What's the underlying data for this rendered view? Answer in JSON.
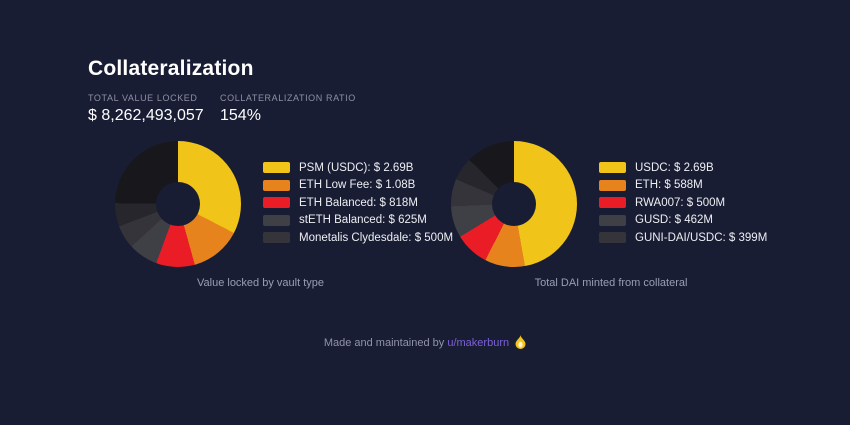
{
  "page": {
    "title": "Collateralization",
    "colors": {
      "background": "#191d33",
      "accent_yellow": "#f0c419",
      "accent_orange": "#e6831d",
      "accent_red": "#ea1c25",
      "link_purple": "#7b61d6"
    }
  },
  "stats": [
    {
      "label": "TOTAL VALUE LOCKED",
      "value": "$ 8,262,493,057"
    },
    {
      "label": "COLLATERALIZATION RATIO",
      "value": "154%"
    }
  ],
  "chart_data": [
    {
      "type": "donut",
      "caption": "Value locked by vault type",
      "total_value_locked": "$ 8,262,493,057",
      "legend_position": "right",
      "start_angle_deg": 0,
      "segments": [
        {
          "label": "PSM (USDC)",
          "display": "$ 2.69B",
          "value_usd_billion": 2.69,
          "pct": 32.6,
          "color": "#f0c419",
          "in_legend": true
        },
        {
          "label": "ETH Low Fee",
          "display": "$ 1.08B",
          "value_usd_billion": 1.08,
          "pct": 13.1,
          "color": "#e6831d",
          "in_legend": true
        },
        {
          "label": "ETH Balanced",
          "display": "$ 818M",
          "value_usd_billion": 0.818,
          "pct": 9.9,
          "color": "#ea1c25",
          "in_legend": true
        },
        {
          "label": "stETH Balanced",
          "display": "$ 625M",
          "value_usd_billion": 0.625,
          "pct": 7.6,
          "color": "#3f3f46",
          "in_legend": true
        },
        {
          "label": "Monetalis Clydesdale",
          "display": "$ 500M",
          "value_usd_billion": 0.5,
          "pct": 6.0,
          "color": "#34343a",
          "in_legend": true
        },
        {
          "label": "other vaults",
          "display": "",
          "pct": 6.0,
          "color": "#26262c",
          "in_legend": false
        },
        {
          "label": "other vaults",
          "display": "",
          "pct": 24.8,
          "color": "#17171c",
          "in_legend": false
        }
      ]
    },
    {
      "type": "donut",
      "caption": "Total DAI minted from collateral",
      "legend_position": "right",
      "start_angle_deg": 0,
      "segments": [
        {
          "label": "USDC",
          "display": "$ 2.69B",
          "value_usd_billion": 2.69,
          "pct": 47.2,
          "color": "#f0c419",
          "in_legend": true
        },
        {
          "label": "ETH",
          "display": "$ 588M",
          "value_usd_billion": 0.588,
          "pct": 10.3,
          "color": "#e6831d",
          "in_legend": true
        },
        {
          "label": "RWA007",
          "display": "$ 500M",
          "value_usd_billion": 0.5,
          "pct": 8.8,
          "color": "#ea1c25",
          "in_legend": true
        },
        {
          "label": "GUSD",
          "display": "$ 462M",
          "value_usd_billion": 0.462,
          "pct": 8.1,
          "color": "#3f3f46",
          "in_legend": true
        },
        {
          "label": "GUNI-DAI/USDC",
          "display": "$ 399M",
          "value_usd_billion": 0.399,
          "pct": 7.0,
          "color": "#34343a",
          "in_legend": true
        },
        {
          "label": "other collateral",
          "display": "",
          "pct": 6.0,
          "color": "#26262c",
          "in_legend": false
        },
        {
          "label": "other collateral",
          "display": "",
          "pct": 12.6,
          "color": "#17171c",
          "in_legend": false
        }
      ]
    }
  ],
  "footer": {
    "text": "Made and maintained by",
    "link": "u/makerburn",
    "icon": "flame-icon"
  }
}
